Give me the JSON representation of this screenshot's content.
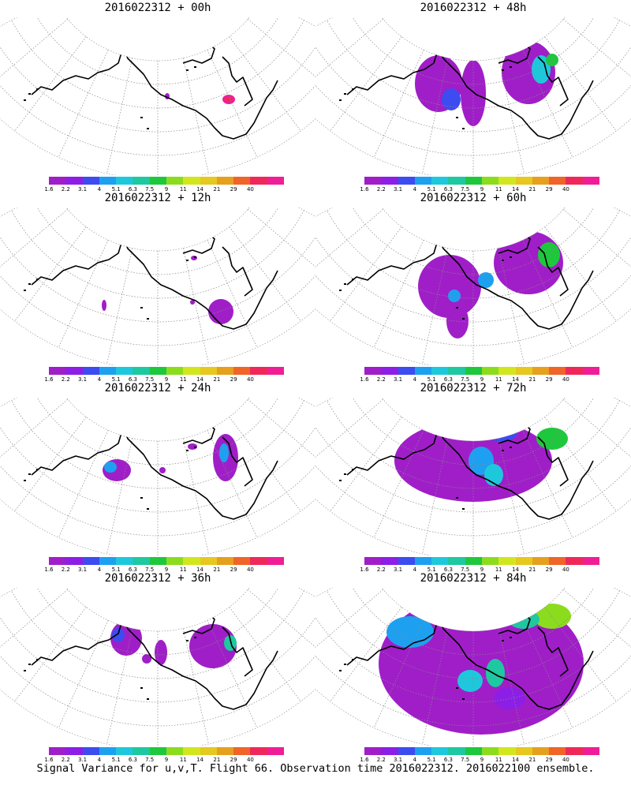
{
  "colorbar": {
    "colors": [
      "#a01ec8",
      "#8c1ee6",
      "#3c4cf0",
      "#1ea0f0",
      "#1ec8dc",
      "#1ec8a0",
      "#1ec83c",
      "#8cdc1e",
      "#d2e61e",
      "#e6c81e",
      "#e6a01e",
      "#f06428",
      "#f0285a",
      "#f01e96"
    ],
    "labels": [
      "1.6",
      "2.2",
      "3.1",
      "4",
      "5.1",
      "6.3",
      "7.5",
      "9",
      "11",
      "14",
      "21",
      "29",
      "40"
    ]
  },
  "panels": [
    {
      "title": "2016022312 + 00h",
      "intensity": 0
    },
    {
      "title": "2016022312 + 48h",
      "intensity": 4
    },
    {
      "title": "2016022312 + 12h",
      "intensity": 1
    },
    {
      "title": "2016022312 + 60h",
      "intensity": 5
    },
    {
      "title": "2016022312 + 24h",
      "intensity": 2
    },
    {
      "title": "2016022312 + 72h",
      "intensity": 6
    },
    {
      "title": "2016022312 + 36h",
      "intensity": 3
    },
    {
      "title": "2016022312 + 84h",
      "intensity": 7
    }
  ],
  "caption": "Signal Variance for u,v,T. Flight 66. Observation time 2016022312. 2016022100 ensemble."
}
